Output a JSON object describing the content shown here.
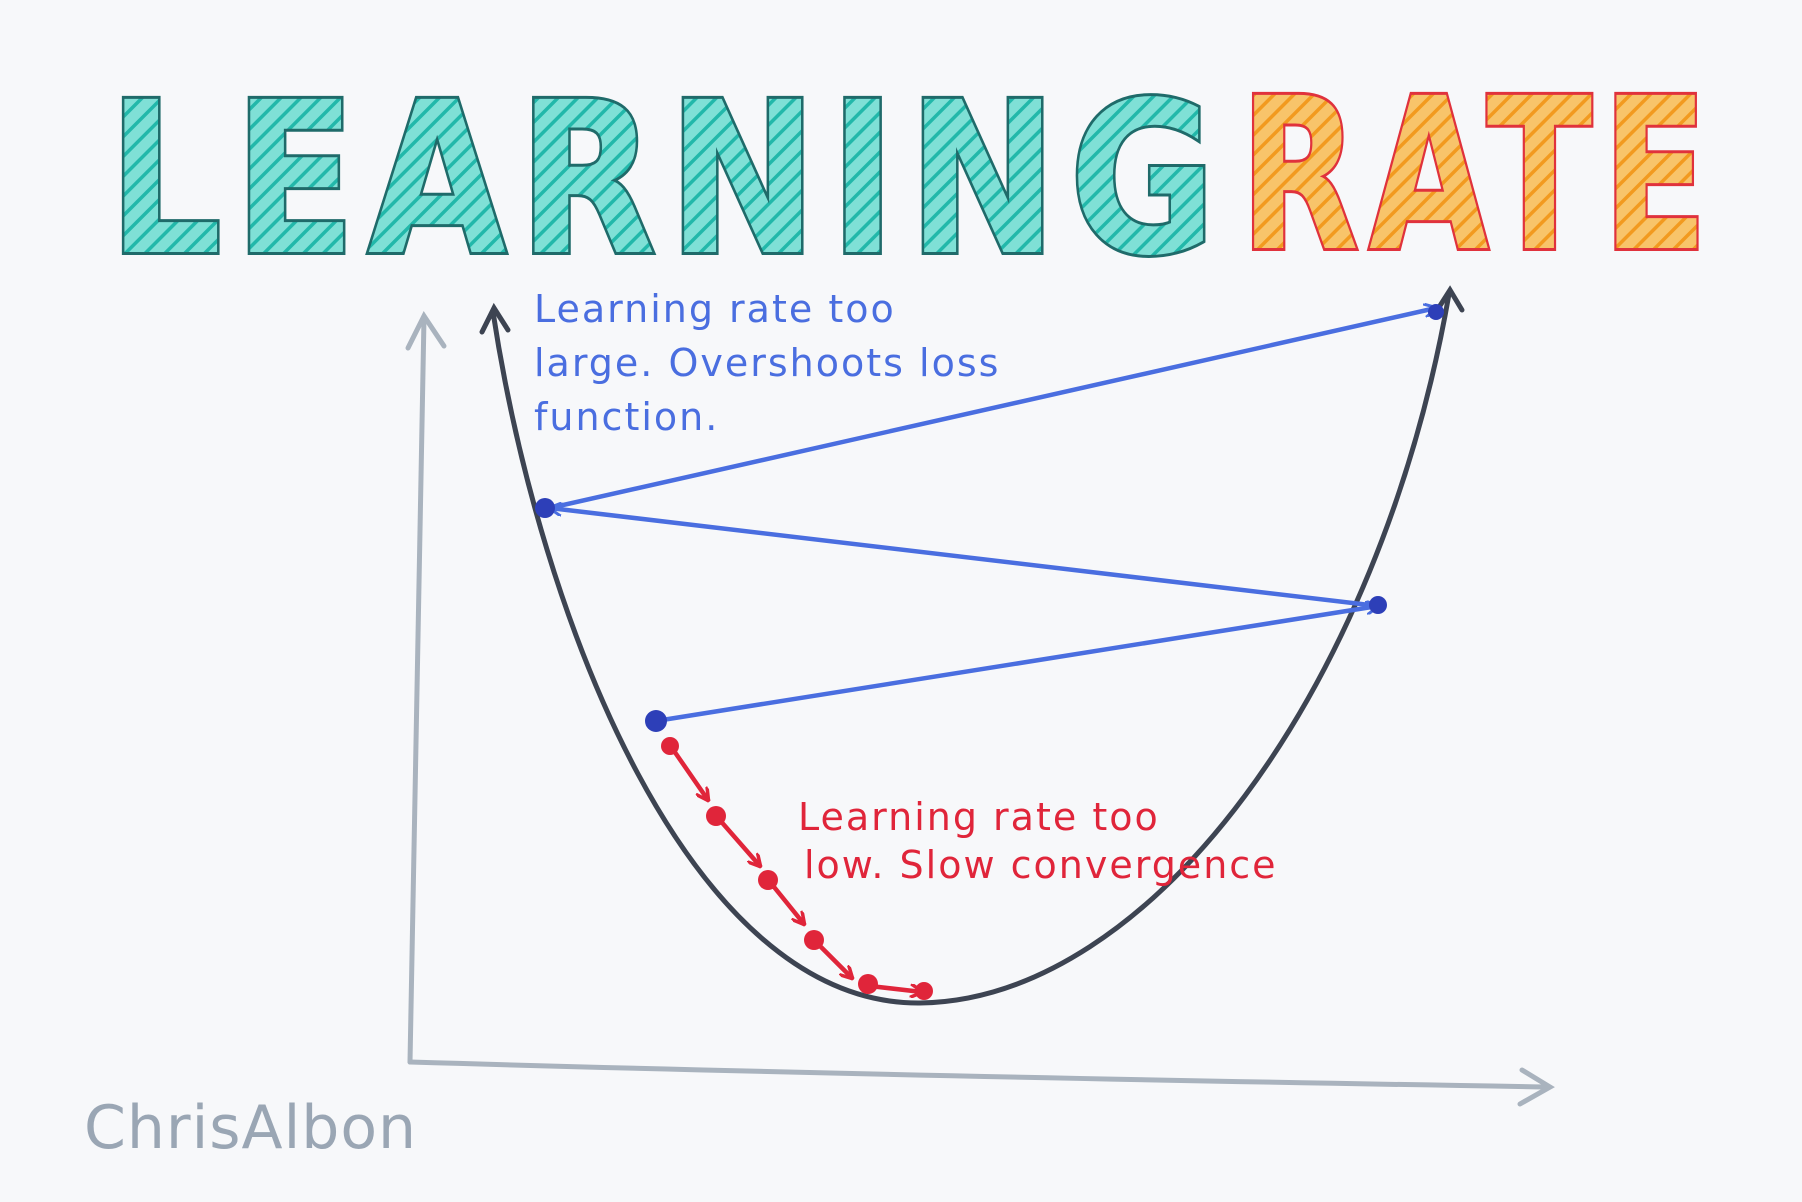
{
  "title": {
    "word1": "LEARNING",
    "word2": "RATE",
    "colors": {
      "word1_fill": "#2ec4b6",
      "word1_outline": "#1f6b6a",
      "word2_fill": "#f5a623",
      "word2_outline": "#e0323c"
    }
  },
  "annotations": {
    "too_large": [
      "Learning rate too",
      "large. Overshoots loss",
      "function."
    ],
    "too_low": [
      "Learning rate too",
      "low. Slow convergence"
    ]
  },
  "signature": "ChrisAlbon",
  "colors": {
    "axes": "#a9b3be",
    "curve": "#3d4452",
    "large_steps": "#4a6ee0",
    "large_points": "#2d3fb8",
    "small_steps": "#e0253a",
    "signature": "#9aa6b4"
  }
}
